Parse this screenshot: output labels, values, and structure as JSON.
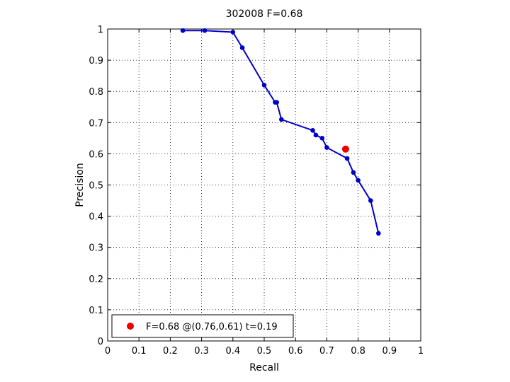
{
  "chart_data": {
    "type": "line",
    "title": "302008 F=0.68",
    "xlabel": "Recall",
    "ylabel": "Precision",
    "xlim": [
      0,
      1
    ],
    "ylim": [
      0,
      1
    ],
    "xticks": [
      "0",
      "0.1",
      "0.2",
      "0.3",
      "0.4",
      "0.5",
      "0.6",
      "0.7",
      "0.8",
      "0.9",
      "1"
    ],
    "yticks": [
      "0",
      "0.1",
      "0.2",
      "0.3",
      "0.4",
      "0.5",
      "0.6",
      "0.7",
      "0.8",
      "0.9",
      "1"
    ],
    "grid": true,
    "legend_position": "bottom-left",
    "series": [
      {
        "color": "#0000cc",
        "x": [
          0.24,
          0.31,
          0.4,
          0.43,
          0.5,
          0.535,
          0.54,
          0.555,
          0.655,
          0.665,
          0.685,
          0.7,
          0.765,
          0.785,
          0.8,
          0.84,
          0.865
        ],
        "y": [
          0.995,
          0.995,
          0.99,
          0.94,
          0.82,
          0.765,
          0.765,
          0.71,
          0.675,
          0.66,
          0.65,
          0.62,
          0.585,
          0.54,
          0.515,
          0.45,
          0.345
        ]
      }
    ],
    "highlight_point": {
      "x": 0.76,
      "y": 0.615,
      "color": "#ee0000",
      "label": "F=0.68 @(0.76,0.61) t=0.19"
    }
  }
}
